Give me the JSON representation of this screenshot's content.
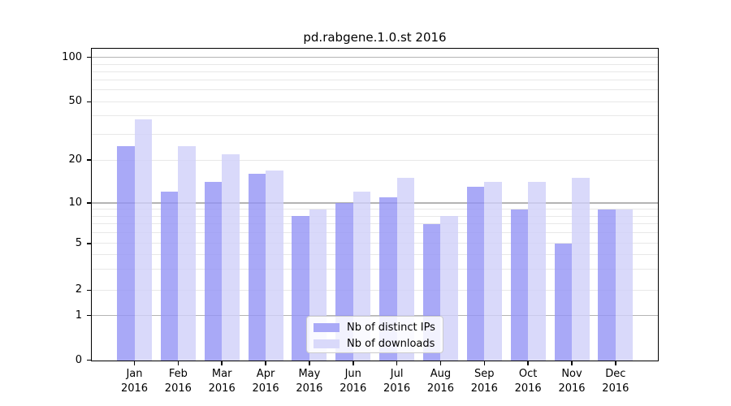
{
  "title": "pd.rabgene.1.0.st 2016",
  "chart_data": {
    "type": "bar",
    "title": "pd.rabgene.1.0.st 2016",
    "categories": [
      "Jan 2016",
      "Feb 2016",
      "Mar 2016",
      "Apr 2016",
      "May 2016",
      "Jun 2016",
      "Jul 2016",
      "Aug 2016",
      "Sep 2016",
      "Oct 2016",
      "Nov 2016",
      "Dec 2016"
    ],
    "x_tick_labels": [
      {
        "month": "Jan",
        "year": "2016"
      },
      {
        "month": "Feb",
        "year": "2016"
      },
      {
        "month": "Mar",
        "year": "2016"
      },
      {
        "month": "Apr",
        "year": "2016"
      },
      {
        "month": "May",
        "year": "2016"
      },
      {
        "month": "Jun",
        "year": "2016"
      },
      {
        "month": "Jul",
        "year": "2016"
      },
      {
        "month": "Aug",
        "year": "2016"
      },
      {
        "month": "Sep",
        "year": "2016"
      },
      {
        "month": "Oct",
        "year": "2016"
      },
      {
        "month": "Nov",
        "year": "2016"
      },
      {
        "month": "Dec",
        "year": "2016"
      }
    ],
    "series": [
      {
        "name": "Nb of distinct IPs",
        "color": "#a9a9f7",
        "values": [
          25,
          12,
          14,
          16,
          8,
          10,
          11,
          7,
          13,
          9,
          5,
          9
        ]
      },
      {
        "name": "Nb of downloads",
        "color": "#d9d9fa",
        "values": [
          38,
          25,
          22,
          17,
          9,
          12,
          15,
          8,
          14,
          14,
          15,
          9
        ]
      }
    ],
    "y_axis": {
      "scale": "symlog",
      "ticks": [
        0,
        1,
        2,
        5,
        10,
        20,
        50,
        100
      ],
      "major_gridlines": [
        1,
        10,
        100
      ],
      "minor_gridlines": [
        2,
        3,
        4,
        5,
        6,
        7,
        8,
        9,
        20,
        30,
        40,
        50,
        60,
        70,
        80,
        90
      ],
      "range": [
        0,
        110
      ]
    },
    "legend": {
      "position": "lower center",
      "items": [
        "Nb of distinct IPs",
        "Nb of downloads"
      ]
    },
    "grid": true
  },
  "colors": {
    "bar_distinct_ips": "#a9a9f7",
    "bar_downloads": "#d9d9fa",
    "grid_major": "#b4b4b4",
    "grid_minor": "#e8e8e8",
    "axis": "#000000",
    "background": "#ffffff"
  }
}
